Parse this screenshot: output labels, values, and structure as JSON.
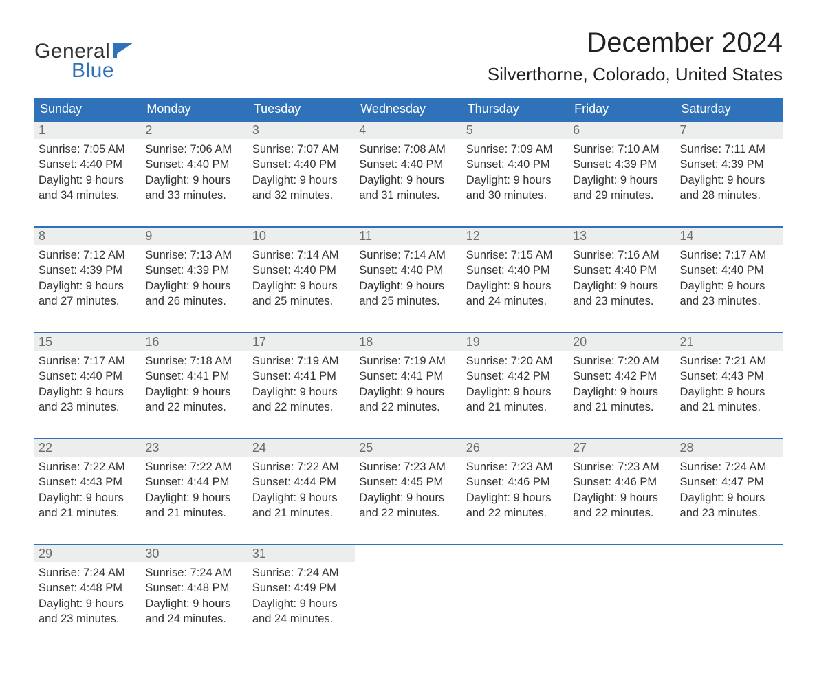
{
  "brand": {
    "word1": "General",
    "word2": "Blue",
    "flag_color": "#2f72b9",
    "text_color": "#333333"
  },
  "title": "December 2024",
  "location": "Silverthorne, Colorado, United States",
  "colors": {
    "header_bg": "#2f72b9",
    "header_text": "#ffffff",
    "daynum_bg": "#eceeee",
    "daynum_text": "#6b6b6b",
    "row_border": "#2f72b9",
    "body_text": "#333333",
    "page_bg": "#ffffff"
  },
  "day_headers": [
    "Sunday",
    "Monday",
    "Tuesday",
    "Wednesday",
    "Thursday",
    "Friday",
    "Saturday"
  ],
  "weeks": [
    [
      {
        "n": "1",
        "sr": "Sunrise: 7:05 AM",
        "ss": "Sunset: 4:40 PM",
        "d1": "Daylight: 9 hours",
        "d2": "and 34 minutes."
      },
      {
        "n": "2",
        "sr": "Sunrise: 7:06 AM",
        "ss": "Sunset: 4:40 PM",
        "d1": "Daylight: 9 hours",
        "d2": "and 33 minutes."
      },
      {
        "n": "3",
        "sr": "Sunrise: 7:07 AM",
        "ss": "Sunset: 4:40 PM",
        "d1": "Daylight: 9 hours",
        "d2": "and 32 minutes."
      },
      {
        "n": "4",
        "sr": "Sunrise: 7:08 AM",
        "ss": "Sunset: 4:40 PM",
        "d1": "Daylight: 9 hours",
        "d2": "and 31 minutes."
      },
      {
        "n": "5",
        "sr": "Sunrise: 7:09 AM",
        "ss": "Sunset: 4:40 PM",
        "d1": "Daylight: 9 hours",
        "d2": "and 30 minutes."
      },
      {
        "n": "6",
        "sr": "Sunrise: 7:10 AM",
        "ss": "Sunset: 4:39 PM",
        "d1": "Daylight: 9 hours",
        "d2": "and 29 minutes."
      },
      {
        "n": "7",
        "sr": "Sunrise: 7:11 AM",
        "ss": "Sunset: 4:39 PM",
        "d1": "Daylight: 9 hours",
        "d2": "and 28 minutes."
      }
    ],
    [
      {
        "n": "8",
        "sr": "Sunrise: 7:12 AM",
        "ss": "Sunset: 4:39 PM",
        "d1": "Daylight: 9 hours",
        "d2": "and 27 minutes."
      },
      {
        "n": "9",
        "sr": "Sunrise: 7:13 AM",
        "ss": "Sunset: 4:39 PM",
        "d1": "Daylight: 9 hours",
        "d2": "and 26 minutes."
      },
      {
        "n": "10",
        "sr": "Sunrise: 7:14 AM",
        "ss": "Sunset: 4:40 PM",
        "d1": "Daylight: 9 hours",
        "d2": "and 25 minutes."
      },
      {
        "n": "11",
        "sr": "Sunrise: 7:14 AM",
        "ss": "Sunset: 4:40 PM",
        "d1": "Daylight: 9 hours",
        "d2": "and 25 minutes."
      },
      {
        "n": "12",
        "sr": "Sunrise: 7:15 AM",
        "ss": "Sunset: 4:40 PM",
        "d1": "Daylight: 9 hours",
        "d2": "and 24 minutes."
      },
      {
        "n": "13",
        "sr": "Sunrise: 7:16 AM",
        "ss": "Sunset: 4:40 PM",
        "d1": "Daylight: 9 hours",
        "d2": "and 23 minutes."
      },
      {
        "n": "14",
        "sr": "Sunrise: 7:17 AM",
        "ss": "Sunset: 4:40 PM",
        "d1": "Daylight: 9 hours",
        "d2": "and 23 minutes."
      }
    ],
    [
      {
        "n": "15",
        "sr": "Sunrise: 7:17 AM",
        "ss": "Sunset: 4:40 PM",
        "d1": "Daylight: 9 hours",
        "d2": "and 23 minutes."
      },
      {
        "n": "16",
        "sr": "Sunrise: 7:18 AM",
        "ss": "Sunset: 4:41 PM",
        "d1": "Daylight: 9 hours",
        "d2": "and 22 minutes."
      },
      {
        "n": "17",
        "sr": "Sunrise: 7:19 AM",
        "ss": "Sunset: 4:41 PM",
        "d1": "Daylight: 9 hours",
        "d2": "and 22 minutes."
      },
      {
        "n": "18",
        "sr": "Sunrise: 7:19 AM",
        "ss": "Sunset: 4:41 PM",
        "d1": "Daylight: 9 hours",
        "d2": "and 22 minutes."
      },
      {
        "n": "19",
        "sr": "Sunrise: 7:20 AM",
        "ss": "Sunset: 4:42 PM",
        "d1": "Daylight: 9 hours",
        "d2": "and 21 minutes."
      },
      {
        "n": "20",
        "sr": "Sunrise: 7:20 AM",
        "ss": "Sunset: 4:42 PM",
        "d1": "Daylight: 9 hours",
        "d2": "and 21 minutes."
      },
      {
        "n": "21",
        "sr": "Sunrise: 7:21 AM",
        "ss": "Sunset: 4:43 PM",
        "d1": "Daylight: 9 hours",
        "d2": "and 21 minutes."
      }
    ],
    [
      {
        "n": "22",
        "sr": "Sunrise: 7:22 AM",
        "ss": "Sunset: 4:43 PM",
        "d1": "Daylight: 9 hours",
        "d2": "and 21 minutes."
      },
      {
        "n": "23",
        "sr": "Sunrise: 7:22 AM",
        "ss": "Sunset: 4:44 PM",
        "d1": "Daylight: 9 hours",
        "d2": "and 21 minutes."
      },
      {
        "n": "24",
        "sr": "Sunrise: 7:22 AM",
        "ss": "Sunset: 4:44 PM",
        "d1": "Daylight: 9 hours",
        "d2": "and 21 minutes."
      },
      {
        "n": "25",
        "sr": "Sunrise: 7:23 AM",
        "ss": "Sunset: 4:45 PM",
        "d1": "Daylight: 9 hours",
        "d2": "and 22 minutes."
      },
      {
        "n": "26",
        "sr": "Sunrise: 7:23 AM",
        "ss": "Sunset: 4:46 PM",
        "d1": "Daylight: 9 hours",
        "d2": "and 22 minutes."
      },
      {
        "n": "27",
        "sr": "Sunrise: 7:23 AM",
        "ss": "Sunset: 4:46 PM",
        "d1": "Daylight: 9 hours",
        "d2": "and 22 minutes."
      },
      {
        "n": "28",
        "sr": "Sunrise: 7:24 AM",
        "ss": "Sunset: 4:47 PM",
        "d1": "Daylight: 9 hours",
        "d2": "and 23 minutes."
      }
    ],
    [
      {
        "n": "29",
        "sr": "Sunrise: 7:24 AM",
        "ss": "Sunset: 4:48 PM",
        "d1": "Daylight: 9 hours",
        "d2": "and 23 minutes."
      },
      {
        "n": "30",
        "sr": "Sunrise: 7:24 AM",
        "ss": "Sunset: 4:48 PM",
        "d1": "Daylight: 9 hours",
        "d2": "and 24 minutes."
      },
      {
        "n": "31",
        "sr": "Sunrise: 7:24 AM",
        "ss": "Sunset: 4:49 PM",
        "d1": "Daylight: 9 hours",
        "d2": "and 24 minutes."
      },
      null,
      null,
      null,
      null
    ]
  ]
}
